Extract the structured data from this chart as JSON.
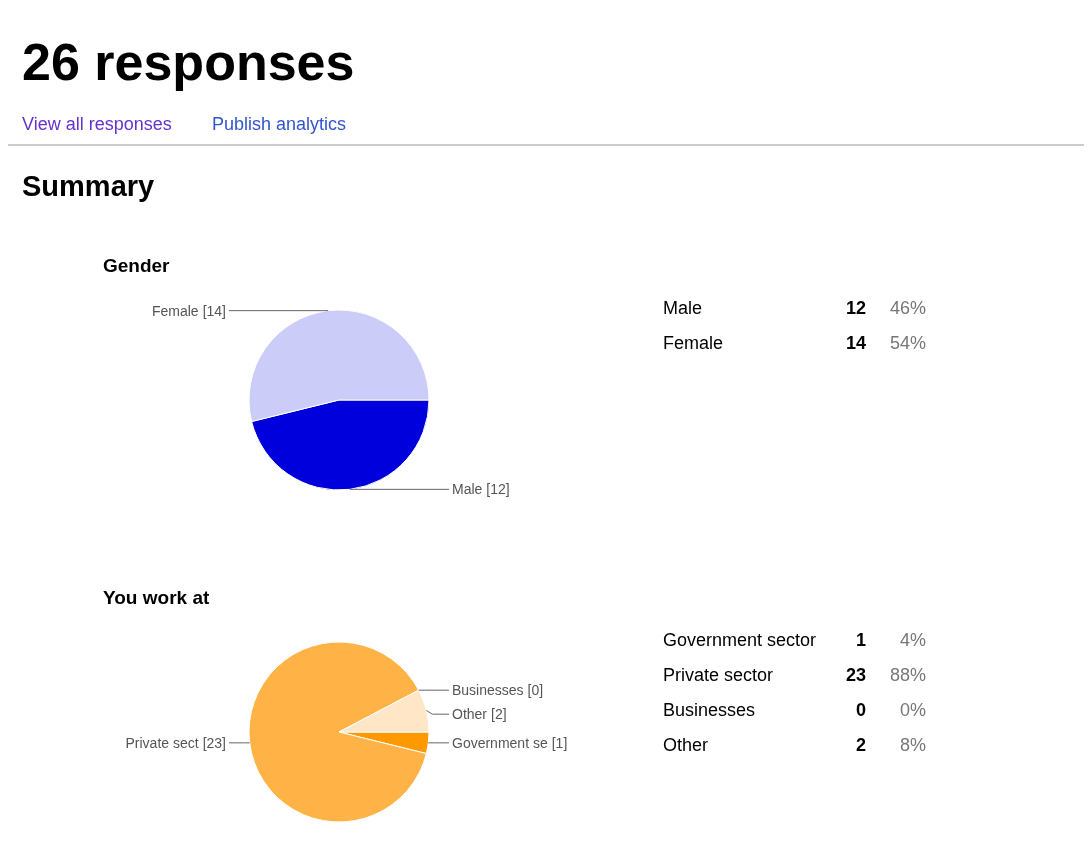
{
  "chart_data": [
    {
      "type": "other",
      "title": "26 responses",
      "subtitle": "Summary",
      "annotations": [
        "View all responses",
        "Publish analytics"
      ]
    },
    {
      "type": "pie",
      "title": "Gender",
      "categories": [
        "Male",
        "Female"
      ],
      "values": [
        12,
        14
      ],
      "colors": [
        "#0000dd",
        "#ccccf8"
      ],
      "value_labels": [
        "[12]",
        "[14]"
      ]
    },
    {
      "type": "other",
      "annotations": [
        "Male",
        "12",
        "46%",
        "Female",
        "14",
        "54%"
      ]
    },
    {
      "type": "pie",
      "title": "You work at",
      "categories": [
        "Government se",
        "Private sect",
        "Businesses",
        "Other"
      ],
      "values": [
        1,
        23,
        0,
        2
      ],
      "colors": [
        "#ff9900",
        "#ffb347",
        "#ffcc80",
        "#ffe6c6"
      ],
      "value_labels": [
        "[1]",
        "[23]",
        "[0]",
        "[2]"
      ]
    },
    {
      "type": "other",
      "annotations": [
        "Government sector",
        "1",
        "4%",
        "Private sector",
        "23",
        "88%",
        "Businesses",
        "0",
        "0%",
        "Other",
        "2",
        "8%"
      ]
    }
  ]
}
